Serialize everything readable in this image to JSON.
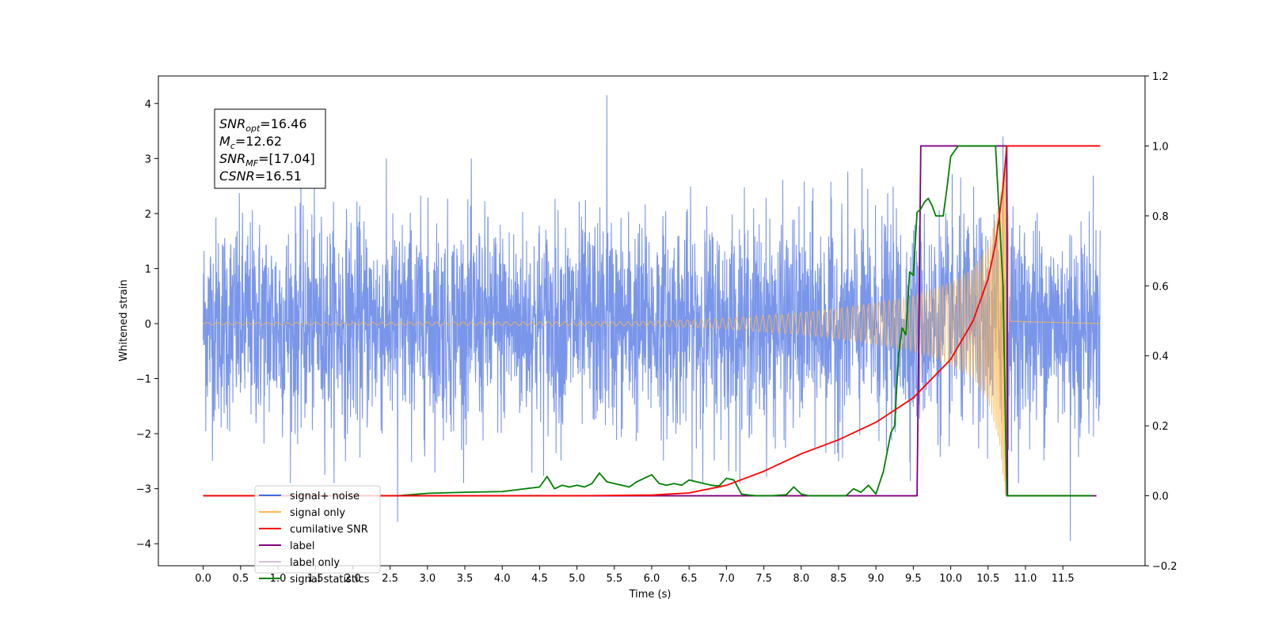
{
  "chart_data": {
    "type": "line",
    "title": "",
    "xlabel": "Time (s)",
    "ylabel": "Whitened strain",
    "y2label": "",
    "xlim": [
      -0.6,
      12.6
    ],
    "ylim": [
      -4.4,
      4.5
    ],
    "y2lim": [
      -0.2,
      1.2
    ],
    "xticks": [
      0.0,
      0.5,
      1.0,
      1.5,
      2.0,
      2.5,
      3.0,
      3.5,
      4.0,
      4.5,
      5.0,
      5.5,
      6.0,
      6.5,
      7.0,
      7.5,
      8.0,
      8.5,
      9.0,
      9.5,
      10.0,
      10.5,
      11.0,
      11.5
    ],
    "xtick_labels": [
      "0.0",
      "0.5",
      "1.0",
      "1.5",
      "2.0",
      "2.5",
      "3.0",
      "3.5",
      "4.0",
      "4.5",
      "5.0",
      "5.5",
      "6.0",
      "6.5",
      "7.0",
      "7.5",
      "8.0",
      "8.5",
      "9.0",
      "9.5",
      "10.0",
      "10.5",
      "11.0",
      "11.5"
    ],
    "yticks": [
      -4,
      -3,
      -2,
      -1,
      0,
      1,
      2,
      3,
      4
    ],
    "ytick_labels": [
      "−4",
      "−3",
      "−2",
      "−1",
      "0",
      "1",
      "2",
      "3",
      "4"
    ],
    "y2ticks": [
      -0.2,
      0.0,
      0.2,
      0.4,
      0.6,
      0.8,
      1.0,
      1.2
    ],
    "y2tick_labels": [
      "−0.2",
      "0.0",
      "0.2",
      "0.4",
      "0.6",
      "0.8",
      "1.0",
      "1.2"
    ],
    "grid": false,
    "legend_position": "lower-left",
    "annotation": [
      {
        "symbol": "SNR",
        "sub": "opt",
        "value": "=16.46"
      },
      {
        "symbol": "M",
        "sub": "c",
        "value": "=12.62"
      },
      {
        "symbol": "SNR",
        "sub": "MF",
        "value": "=[17.04]"
      },
      {
        "symbol": "CSNR",
        "sub": "",
        "value": "=16.51"
      }
    ],
    "series": [
      {
        "name": "signal+ noise",
        "color": "#4169e1",
        "axis": "left",
        "kind": "noise",
        "x_range": [
          0.0,
          12.0
        ],
        "approx_envelope": [
          -2.9,
          3.0
        ],
        "notable_extremes": [
          [
            5.4,
            4.15
          ],
          [
            11.6,
            -3.95
          ],
          [
            2.6,
            -3.6
          ],
          [
            10.7,
            3.4
          ]
        ]
      },
      {
        "name": "signal only",
        "color": "#ffb74d",
        "axis": "left",
        "kind": "chirp",
        "x_range": [
          0.0,
          12.0
        ],
        "merger_time": 10.75,
        "peak_amplitude": 3.4,
        "envelope": {
          "x": [
            0.0,
            6.0,
            7.0,
            8.0,
            8.5,
            9.0,
            9.5,
            10.0,
            10.3,
            10.5,
            10.65,
            10.72,
            10.75,
            10.8,
            12.0
          ],
          "y": [
            0.02,
            0.04,
            0.1,
            0.2,
            0.28,
            0.38,
            0.5,
            0.75,
            1.0,
            1.4,
            2.2,
            3.0,
            3.4,
            0.05,
            0.0
          ]
        }
      },
      {
        "name": "cumilative SNR",
        "color": "#ff0000",
        "axis": "right",
        "x": [
          0.0,
          5.0,
          6.0,
          6.5,
          7.0,
          7.5,
          8.0,
          8.5,
          9.0,
          9.5,
          10.0,
          10.3,
          10.5,
          10.6,
          10.7,
          10.75,
          12.0
        ],
        "values": [
          0.0,
          0.0,
          0.002,
          0.008,
          0.03,
          0.07,
          0.12,
          0.16,
          0.21,
          0.28,
          0.39,
          0.5,
          0.62,
          0.72,
          0.88,
          1.0,
          1.0
        ]
      },
      {
        "name": "label",
        "color": "#800080",
        "axis": "right",
        "x": [
          0.0,
          9.55,
          9.6,
          10.75,
          10.76,
          11.95
        ],
        "values": [
          0.0,
          0.0,
          1.0,
          1.0,
          0.0,
          0.0
        ]
      },
      {
        "name": "label only",
        "color": "#d8bfd8",
        "axis": "right",
        "x": [],
        "values": []
      },
      {
        "name": "signal statistics",
        "color": "#008000",
        "axis": "right",
        "x": [
          0.0,
          2.6,
          3.0,
          3.5,
          4.0,
          4.3,
          4.5,
          4.6,
          4.7,
          4.8,
          4.9,
          5.0,
          5.1,
          5.2,
          5.3,
          5.4,
          5.5,
          5.6,
          5.7,
          5.8,
          5.9,
          6.0,
          6.1,
          6.2,
          6.3,
          6.4,
          6.5,
          6.6,
          6.7,
          6.8,
          6.9,
          7.0,
          7.1,
          7.2,
          7.3,
          7.4,
          7.6,
          7.8,
          7.9,
          8.0,
          8.1,
          8.2,
          8.4,
          8.6,
          8.7,
          8.8,
          8.9,
          9.0,
          9.1,
          9.2,
          9.25,
          9.3,
          9.35,
          9.4,
          9.45,
          9.5,
          9.55,
          9.6,
          9.65,
          9.7,
          9.75,
          9.8,
          9.9,
          9.95,
          10.0,
          10.1,
          10.2,
          10.3,
          10.5,
          10.6,
          10.7,
          10.75,
          11.9
        ],
        "values": [
          0.0,
          0.0,
          0.007,
          0.01,
          0.012,
          0.02,
          0.025,
          0.055,
          0.02,
          0.03,
          0.025,
          0.03,
          0.025,
          0.035,
          0.065,
          0.04,
          0.035,
          0.03,
          0.025,
          0.04,
          0.05,
          0.06,
          0.035,
          0.03,
          0.035,
          0.03,
          0.045,
          0.04,
          0.035,
          0.03,
          0.028,
          0.05,
          0.045,
          0.005,
          0.002,
          0.0,
          0.0,
          0.003,
          0.025,
          0.005,
          0.0,
          0.0,
          0.0,
          0.0,
          0.02,
          0.01,
          0.03,
          0.005,
          0.07,
          0.18,
          0.2,
          0.4,
          0.48,
          0.46,
          0.64,
          0.63,
          0.81,
          0.82,
          0.84,
          0.85,
          0.83,
          0.8,
          0.8,
          0.88,
          0.97,
          1.0,
          1.0,
          1.0,
          1.0,
          1.0,
          0.6,
          0.0,
          0.0
        ]
      }
    ]
  }
}
